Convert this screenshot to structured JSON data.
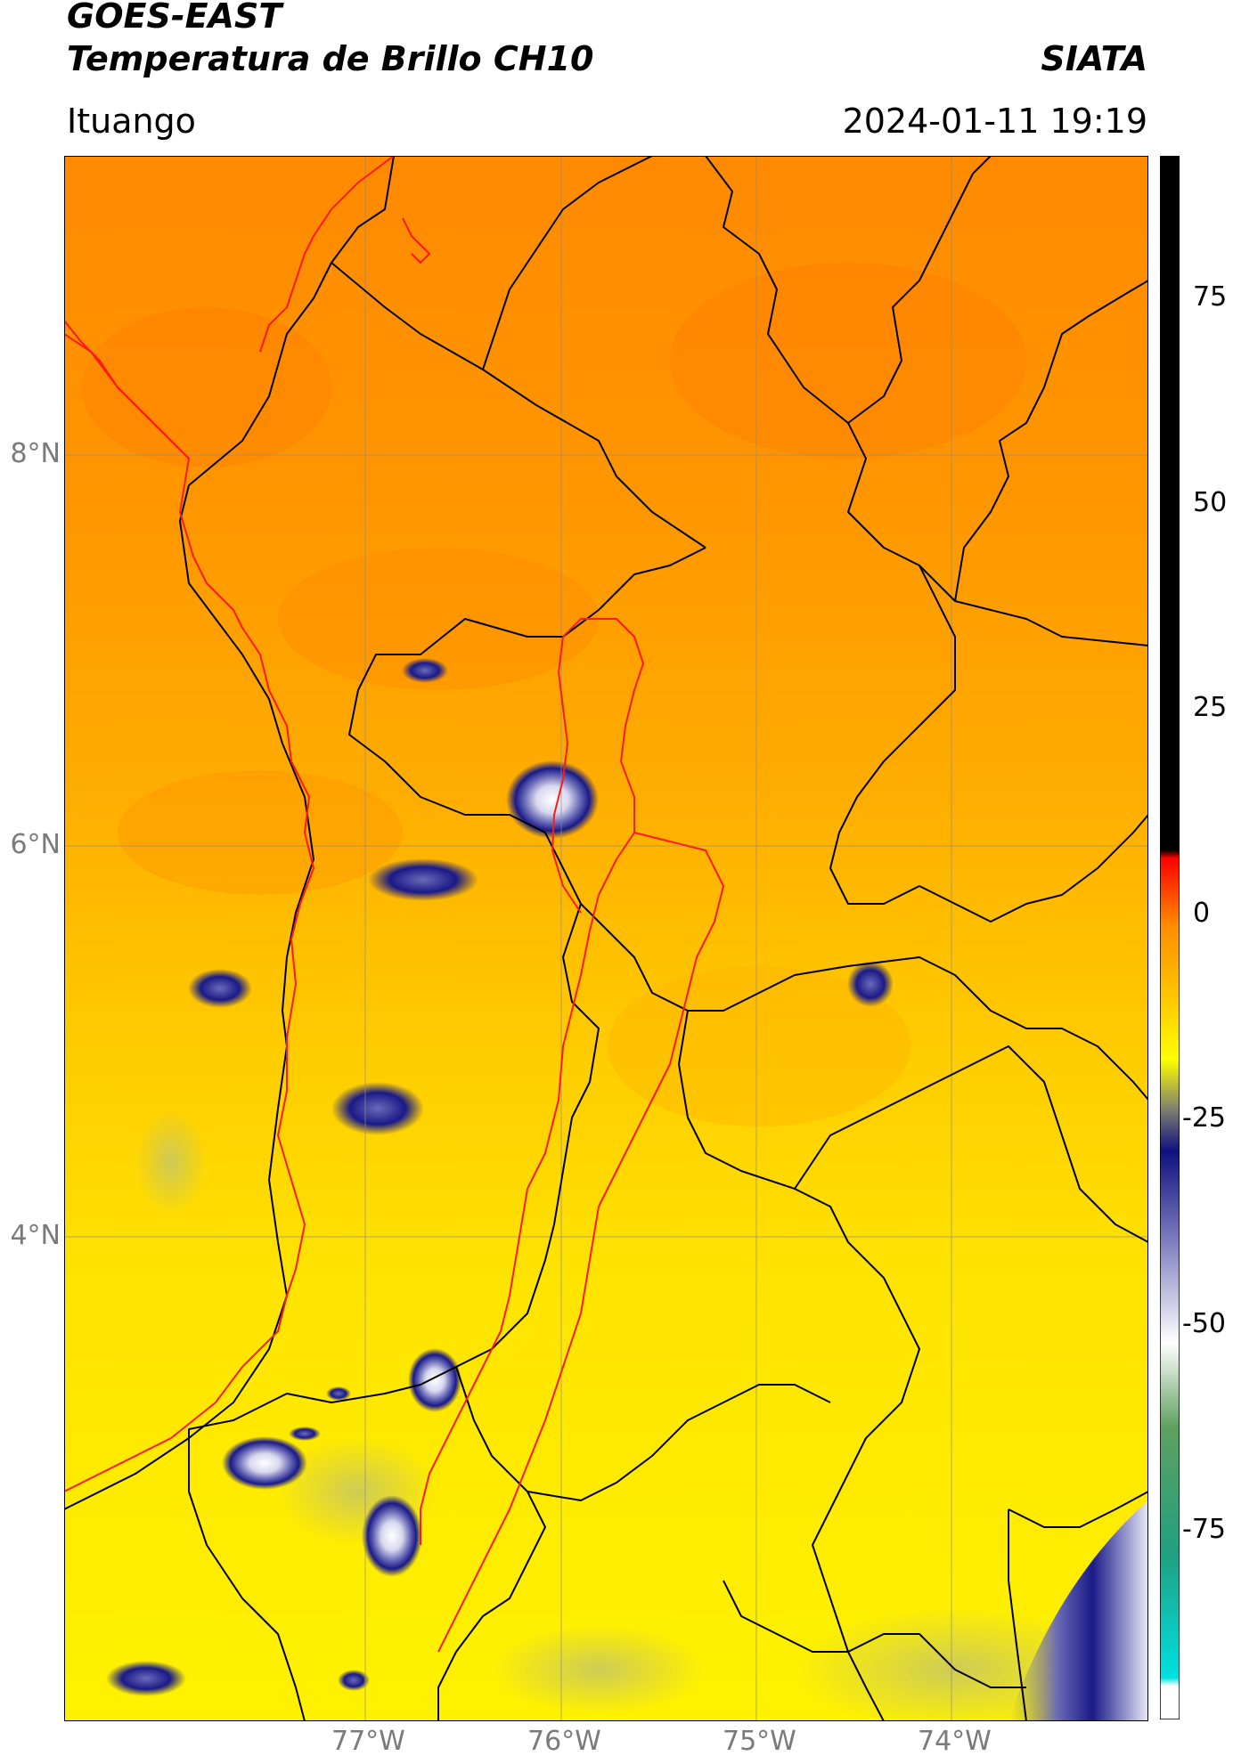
{
  "header": {
    "title_line1": "GOES-EAST",
    "title_line2": "Temperatura de Brillo CH10",
    "brand": "SIATA",
    "location": "Ituango",
    "timestamp": "2024-01-11 19:19"
  },
  "map": {
    "lat_labels": [
      "8°N",
      "6°N",
      "4°N"
    ],
    "lon_labels": [
      "77°W",
      "76°W",
      "75°W",
      "74°W"
    ],
    "colors": {
      "warm_north": "#ff8c00",
      "mid": "#ffbf00",
      "cool_south": "#fff000",
      "cold_cloud": "#1a1a8c",
      "very_cold": "#e6e6f5",
      "borders": "#000000",
      "region_lines": "#ff0000"
    }
  },
  "colorbar": {
    "ticks": [
      "75",
      "50",
      "25",
      "0",
      "-25",
      "-50",
      "-75"
    ],
    "range": [
      -95,
      92
    ],
    "stops": [
      {
        "v": 92,
        "c": "#000000"
      },
      {
        "v": 9,
        "c": "#000000"
      },
      {
        "v": 8,
        "c": "#ff0000"
      },
      {
        "v": 0,
        "c": "#ff8c00"
      },
      {
        "v": -10,
        "c": "#ffd000"
      },
      {
        "v": -16,
        "c": "#ffff00"
      },
      {
        "v": -22,
        "c": "#808070"
      },
      {
        "v": -27,
        "c": "#101080"
      },
      {
        "v": -38,
        "c": "#8080c0"
      },
      {
        "v": -50,
        "c": "#ffffff"
      },
      {
        "v": -60,
        "c": "#60a060"
      },
      {
        "v": -75,
        "c": "#20a080"
      },
      {
        "v": -90,
        "c": "#00e0e0"
      },
      {
        "v": -91,
        "c": "#ffffff"
      },
      {
        "v": -95,
        "c": "#ffffff"
      }
    ]
  }
}
